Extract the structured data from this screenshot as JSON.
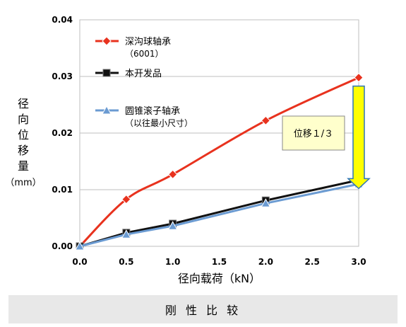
{
  "chart_data": {
    "type": "line",
    "x": [
      0.0,
      0.5,
      1.0,
      2.0,
      3.0
    ],
    "xticks": [
      "0.0",
      "0.5",
      "1.0",
      "1.5",
      "2.0",
      "2.5",
      "3.0"
    ],
    "yticks": [
      "0.00",
      "0.01",
      "0.02",
      "0.03",
      "0.04"
    ],
    "xlim": [
      0,
      3
    ],
    "ylim": [
      0,
      0.04
    ],
    "xlabel": "径向载荷（kN）",
    "ylabel": [
      "径",
      "向",
      "位",
      "移",
      "量",
      "（mm）"
    ],
    "grid": "horizontal",
    "legend_position": "top-left",
    "series": [
      {
        "name": "深沟球轴承",
        "name_line2": "（6001）",
        "color": "#e8321e",
        "marker": "diamond",
        "values": [
          0.0,
          0.0083,
          0.0127,
          0.0222,
          0.0298
        ]
      },
      {
        "name": "本开发品",
        "color": "#111111",
        "marker": "square",
        "values": [
          0.0,
          0.0024,
          0.004,
          0.0081,
          0.0117
        ]
      },
      {
        "name": "圆锥滚子轴承",
        "name_line2": "（以往最小尺寸）",
        "color": "#6b9bd2",
        "marker": "triangle",
        "values": [
          0.0,
          0.0021,
          0.0036,
          0.0076,
          0.011
        ]
      }
    ],
    "annotation": {
      "text": "位移１/３",
      "arrow_from": 0.0298,
      "arrow_to": 0.0137,
      "box_color": "#ffffcc",
      "arrow_color": "#ffff00"
    }
  },
  "footer": {
    "caption": "刚 性 比 较"
  }
}
